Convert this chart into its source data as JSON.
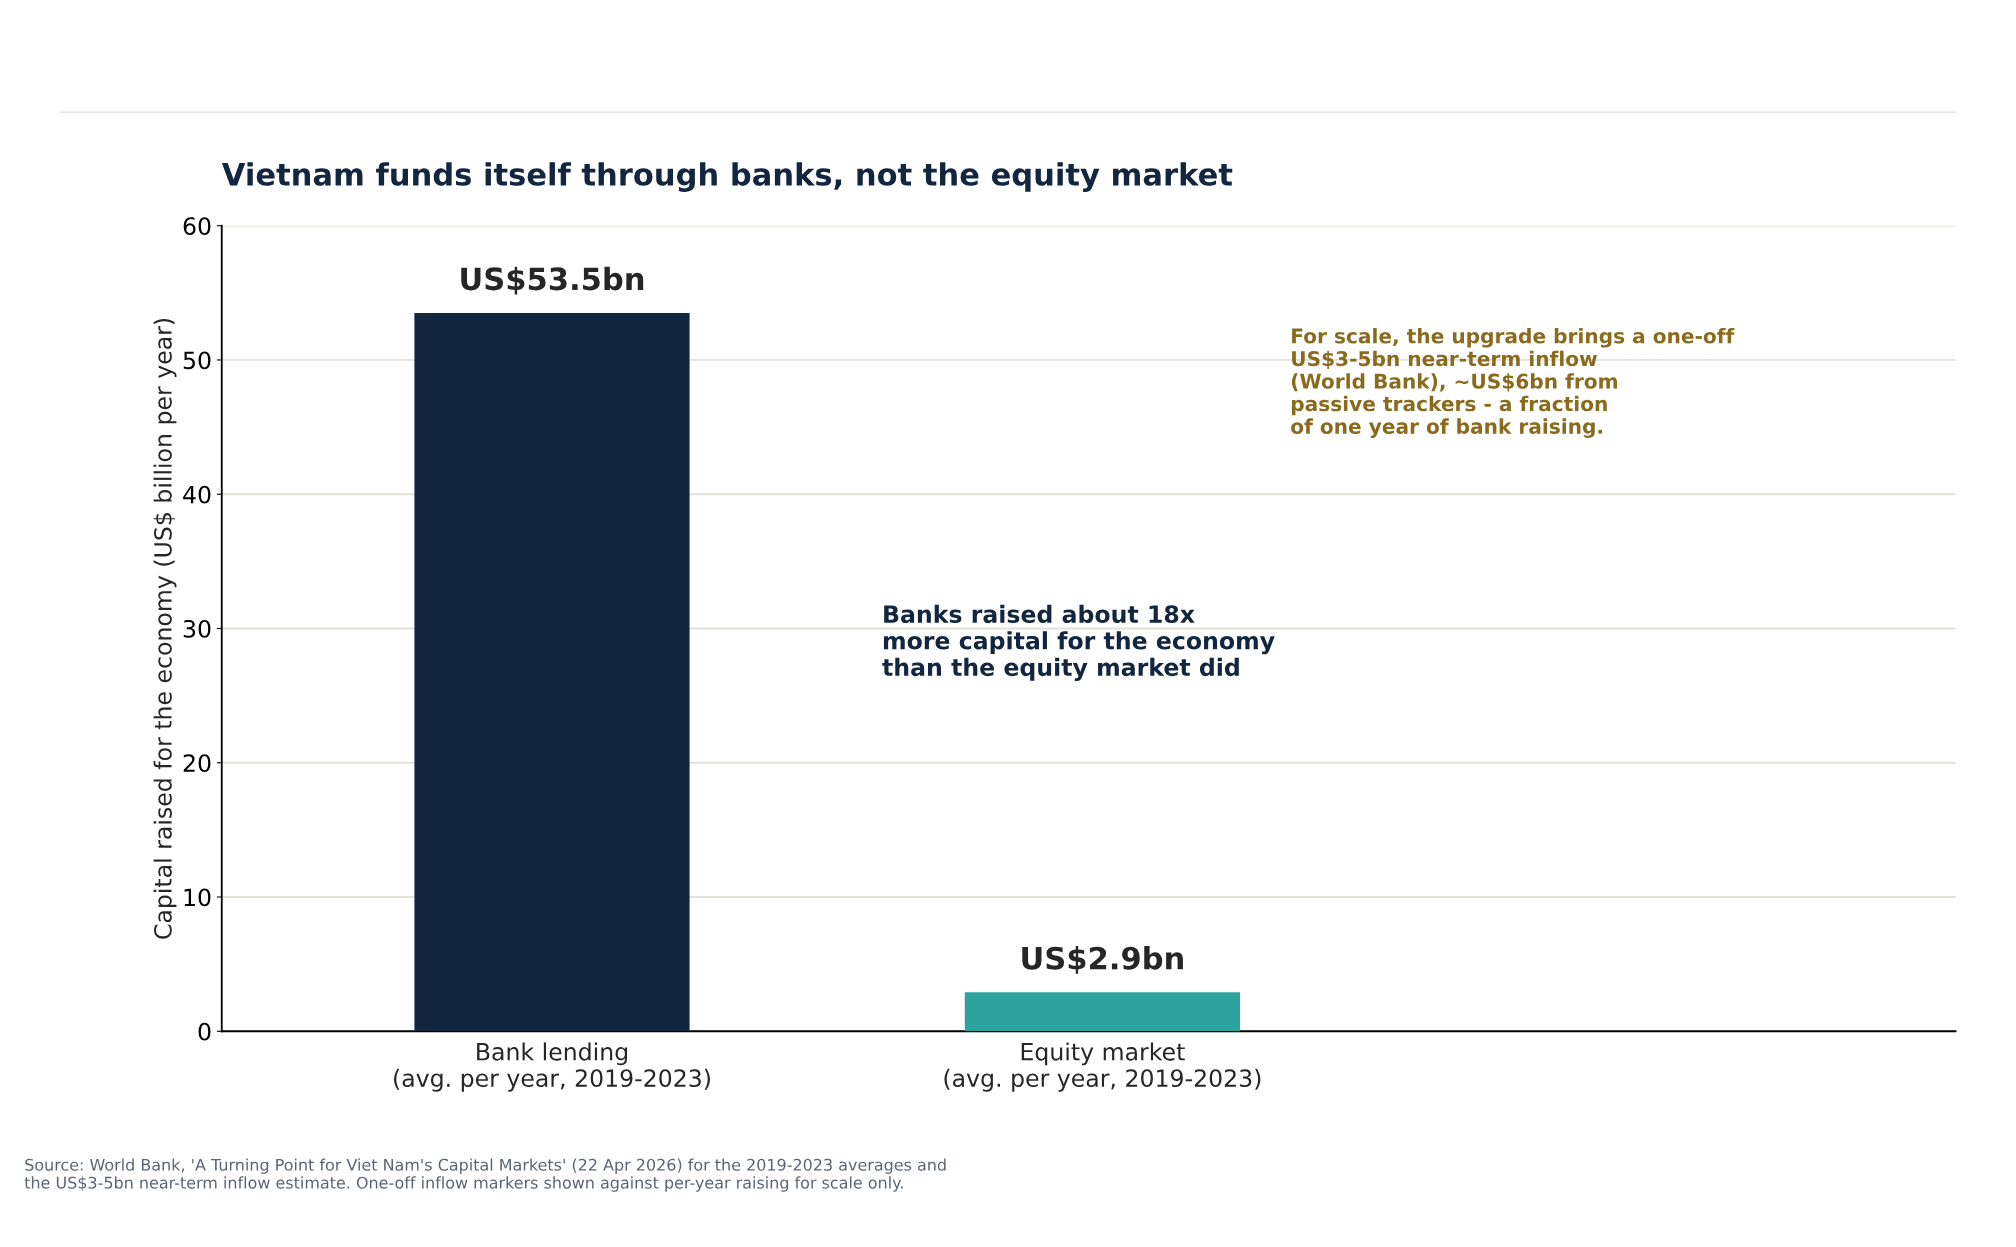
{
  "chart_data": {
    "type": "bar",
    "title": "Vietnam funds itself through banks, not the equity market",
    "ylabel": "Capital raised for the economy (US$ billion per year)",
    "categories": [
      "Bank lending\n(avg. per year, 2019-2023)",
      "Equity market\n(avg. per year, 2019-2023)"
    ],
    "values": [
      53.5,
      2.9
    ],
    "colors": [
      "#12263f",
      "#2ca39e"
    ],
    "value_labels": [
      "US$53.5bn",
      "US$2.9bn"
    ],
    "ylim": [
      0,
      60
    ],
    "yticks": [
      0,
      10,
      20,
      30,
      40,
      50,
      60
    ],
    "grid": "y",
    "legend": false,
    "annotations": [
      "Banks raised about 18x\nmore capital for the economy\nthan the equity market did",
      "For scale, the upgrade brings a one-off\nUS$3-5bn near-term inflow\n(World Bank), ~US$6bn from\npassive trackers - a fraction\nof one year of bank raising.",
      "Source: World Bank, 'A Turning Point for Viet Nam's Capital Markets' (22 Apr 2026) for the 2019-2023 averages and\nthe US$3-5bn near-term inflow estimate. One-off inflow markers shown against per-year raising for scale only."
    ]
  }
}
